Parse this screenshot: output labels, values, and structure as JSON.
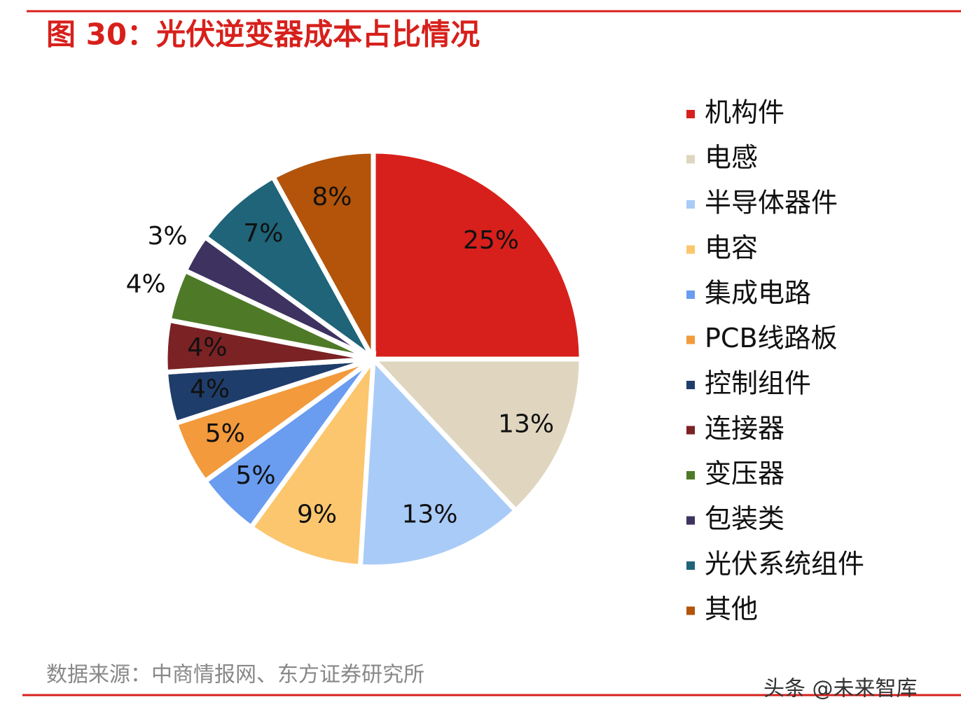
{
  "chart_data": {
    "type": "pie",
    "title": "图 30：光伏逆变器成本占比情况",
    "source": "数据来源：中商情报网、东方证券研究所",
    "watermark": "头条 @未来智库",
    "legend": "right",
    "categories": [
      "机构件",
      "电感",
      "半导体器件",
      "电容",
      "集成电路",
      "PCB线路板",
      "控制组件",
      "连接器",
      "变压器",
      "包装类",
      "光伏系统组件",
      "其他"
    ],
    "values": [
      25,
      13,
      13,
      9,
      5,
      5,
      4,
      4,
      4,
      3,
      7,
      8
    ],
    "value_labels": [
      "25%",
      "13%",
      "13%",
      "9%",
      "5%",
      "5%",
      "4%",
      "4%",
      "4%",
      "3%",
      "7%",
      "8%"
    ],
    "colors": [
      "#d7201b",
      "#e0d6c0",
      "#a9cbf7",
      "#fbc66e",
      "#6a9cf0",
      "#f29a3c",
      "#1f3d6b",
      "#7b2224",
      "#4e7a28",
      "#3e3261",
      "#1f6478",
      "#b3540a"
    ]
  }
}
